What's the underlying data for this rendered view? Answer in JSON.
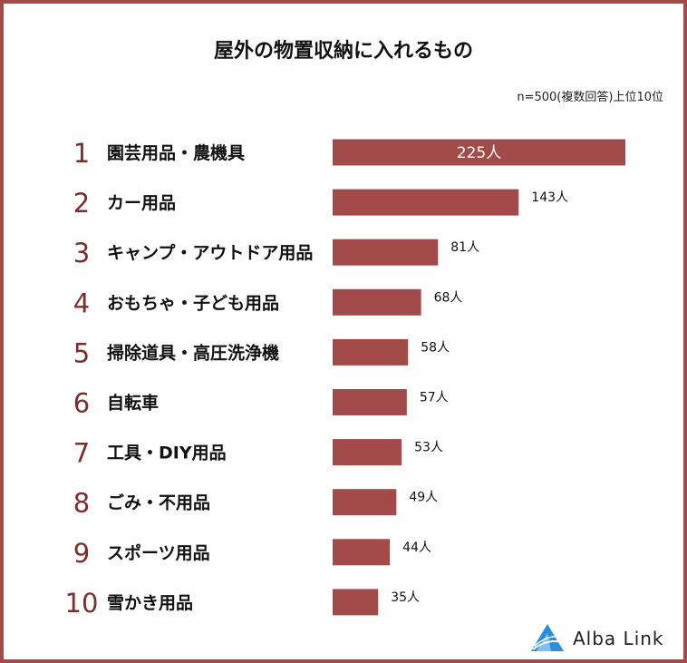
{
  "colors": {
    "bar": "#a34a4a",
    "frame": "#a34a4a",
    "rank": "#7b2e2e",
    "logo_blue": "#2b8ed8"
  },
  "title": "屋外の物置収納に入れるもの",
  "note": "n=500(複数回答)上位10位",
  "brand": {
    "name": "Alba Link",
    "icon": "mountain-logo-icon"
  },
  "chart_data": {
    "type": "bar",
    "orientation": "horizontal",
    "title": "屋外の物置収納に入れるもの",
    "unit": "人",
    "xlim": [
      0,
      225
    ],
    "ranks": [
      "1",
      "2",
      "3",
      "4",
      "5",
      "6",
      "7",
      "8",
      "9",
      "10"
    ],
    "categories": [
      "園芸用品・農機具",
      "カー用品",
      "キャンプ・アウトドア用品",
      "おもちゃ・子ども用品",
      "掃除道具・高圧洗浄機",
      "自転車",
      "工具・DIY用品",
      "ごみ・不用品",
      "スポーツ用品",
      "雪かき用品"
    ],
    "values": [
      225,
      143,
      81,
      68,
      58,
      57,
      53,
      49,
      44,
      35
    ],
    "labels": [
      "225人",
      "143人",
      "81人",
      "68人",
      "58人",
      "57人",
      "53人",
      "49人",
      "44人",
      "35人"
    ]
  }
}
